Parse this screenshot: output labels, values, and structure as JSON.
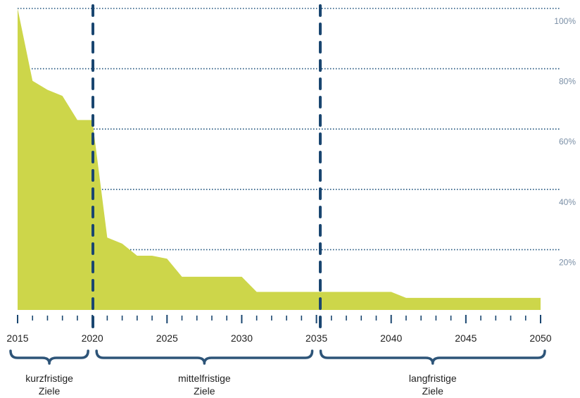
{
  "chart_data": {
    "type": "area",
    "x": [
      2015,
      2016,
      2017,
      2018,
      2019,
      2020,
      2021,
      2022,
      2023,
      2024,
      2025,
      2026,
      2027,
      2028,
      2029,
      2030,
      2031,
      2032,
      2033,
      2034,
      2035,
      2036,
      2037,
      2038,
      2039,
      2040,
      2041,
      2042,
      2043,
      2044,
      2045,
      2046,
      2047,
      2048,
      2049,
      2050
    ],
    "y": [
      100,
      76,
      73,
      71,
      63,
      63,
      24,
      22,
      18,
      18,
      17,
      11,
      11,
      11,
      11,
      11,
      6,
      6,
      6,
      6,
      6,
      6,
      6,
      6,
      6,
      6,
      4,
      4,
      4,
      4,
      4,
      4,
      4,
      4,
      4,
      4
    ],
    "series_color": "#cdd64a",
    "xlim": [
      2015,
      2050
    ],
    "ylim": [
      0,
      100
    ],
    "x_tick_labels": [
      "2015",
      "2020",
      "2025",
      "2030",
      "2035",
      "2040",
      "2045",
      "2050"
    ],
    "y_tick_labels": [
      "20%",
      "40%",
      "60%",
      "80%",
      "100%"
    ],
    "y_tick_values": [
      20,
      40,
      60,
      80,
      100
    ],
    "gridlines": "horizontal dotted",
    "gridline_color": "#1a4f7a",
    "phase_dividers": [
      2020,
      2035
    ],
    "divider_color": "#1a4670",
    "phases": [
      {
        "from": 2015,
        "to": 2020,
        "line1": "kurzfristige",
        "line2": "Ziele"
      },
      {
        "from": 2020,
        "to": 2035,
        "line1": "mittelfristige",
        "line2": "Ziele"
      },
      {
        "from": 2035,
        "to": 2050,
        "line1": "langfristige",
        "line2": "Ziele"
      }
    ],
    "title": "",
    "xlabel": "",
    "ylabel": ""
  }
}
